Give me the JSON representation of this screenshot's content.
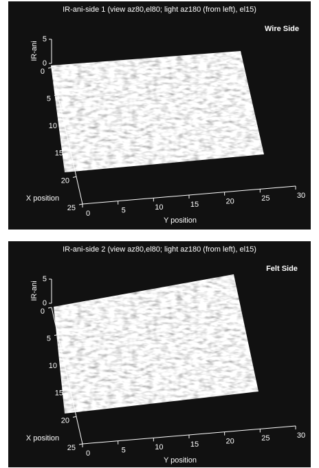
{
  "chart_data": [
    {
      "type": "surface",
      "title": "IR-ani-side 1 (view az80,el80; light az180 (from left), el15)",
      "annotation": "Wire Side",
      "xlabel": "X position",
      "ylabel": "Y position",
      "zlabel": "IR-ani",
      "xlim": [
        0,
        25
      ],
      "xticks": [
        0,
        5,
        10,
        15,
        20,
        25
      ],
      "ylim": [
        0,
        30
      ],
      "yticks": [
        0,
        5,
        10,
        15,
        20,
        25,
        30
      ],
      "zlim": [
        0,
        5
      ],
      "zticks": [
        0,
        5
      ]
    },
    {
      "type": "surface",
      "title": "IR-ani-side 2 (view az80,el80; light az180 (from left), el15)",
      "annotation": "Felt Side",
      "xlabel": "X position",
      "ylabel": "Y position",
      "zlabel": "IR-ani",
      "xlim": [
        0,
        25
      ],
      "xticks": [
        0,
        5,
        10,
        15,
        20,
        25
      ],
      "ylim": [
        0,
        30
      ],
      "yticks": [
        0,
        5,
        10,
        15,
        20,
        25,
        30
      ],
      "zlim": [
        0,
        5
      ],
      "zticks": [
        0,
        5
      ]
    }
  ]
}
